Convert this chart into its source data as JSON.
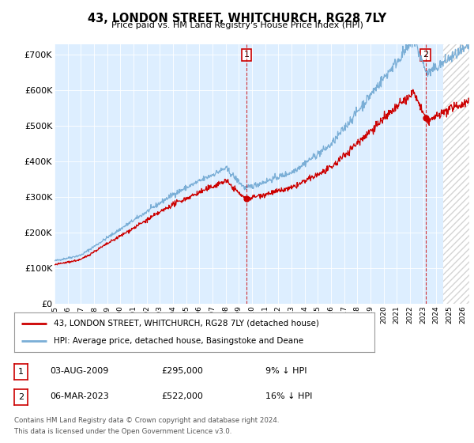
{
  "title": "43, LONDON STREET, WHITCHURCH, RG28 7LY",
  "subtitle": "Price paid vs. HM Land Registry's House Price Index (HPI)",
  "ylabel_ticks": [
    "£0",
    "£100K",
    "£200K",
    "£300K",
    "£400K",
    "£500K",
    "£600K",
    "£700K"
  ],
  "ytick_values": [
    0,
    100000,
    200000,
    300000,
    400000,
    500000,
    600000,
    700000
  ],
  "ylim": [
    0,
    730000
  ],
  "legend_line1": "43, LONDON STREET, WHITCHURCH, RG28 7LY (detached house)",
  "legend_line2": "HPI: Average price, detached house, Basingstoke and Deane",
  "annotation1_date": "03-AUG-2009",
  "annotation1_price": "£295,000",
  "annotation1_hpi": "9% ↓ HPI",
  "annotation2_date": "06-MAR-2023",
  "annotation2_price": "£522,000",
  "annotation2_hpi": "16% ↓ HPI",
  "footer1": "Contains HM Land Registry data © Crown copyright and database right 2024.",
  "footer2": "This data is licensed under the Open Government Licence v3.0.",
  "red_color": "#cc0000",
  "blue_color": "#7aaed6",
  "bg_color": "#ddeeff",
  "hatch_color": "#cccccc",
  "plot_bg": "#ffffff",
  "annotation1_price_val": 295000,
  "annotation2_price_val": 522000,
  "sale1_year": 2009.58,
  "sale2_year": 2023.17,
  "hatch_start_year": 2024.5,
  "xmin": 1995,
  "xmax": 2026.5
}
